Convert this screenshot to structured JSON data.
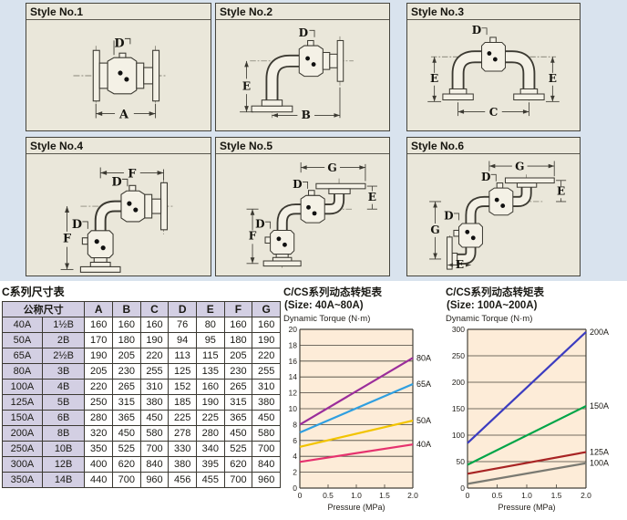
{
  "colors": {
    "page_top_background": "#d9e3ee",
    "panel_background": "#eae7da",
    "chart_plot_background": "#fdecd8",
    "table_header_background": "#d3cfe3"
  },
  "panels": [
    {
      "title": "Style No.1",
      "dims": {
        "top": "D",
        "bottom": "A"
      }
    },
    {
      "title": "Style No.2",
      "dims": {
        "top": "D",
        "left": "E",
        "bottom": "B"
      }
    },
    {
      "title": "Style No.3",
      "dims": {
        "top": "D",
        "left": "E",
        "right": "E",
        "bottom": "C"
      }
    },
    {
      "title": "Style No.4",
      "dims": {
        "top": "F",
        "upper": "D",
        "lower": "D",
        "left": "F"
      }
    },
    {
      "title": "Style No.5",
      "dims": {
        "top": "G",
        "upper": "D",
        "right": "E",
        "lower": "D",
        "left": "F"
      }
    },
    {
      "title": "Style No.6",
      "dims": {
        "top": "G",
        "upper": "D",
        "right": "E",
        "lower": "D",
        "left": "G",
        "bottom": "E"
      }
    }
  ],
  "table": {
    "title": "C系列尺寸表",
    "size_header": "公称尺寸",
    "columns": [
      "A",
      "B",
      "C",
      "D",
      "E",
      "F",
      "G"
    ],
    "rows": [
      {
        "size": [
          "40A",
          "1½B"
        ],
        "values": [
          "160",
          "160",
          "160",
          "76",
          "80",
          "160",
          "160"
        ]
      },
      {
        "size": [
          "50A",
          "2B"
        ],
        "values": [
          "170",
          "180",
          "190",
          "94",
          "95",
          "180",
          "190"
        ]
      },
      {
        "size": [
          "65A",
          "2½B"
        ],
        "values": [
          "190",
          "205",
          "220",
          "113",
          "115",
          "205",
          "220"
        ]
      },
      {
        "size": [
          "80A",
          "3B"
        ],
        "values": [
          "205",
          "230",
          "255",
          "125",
          "135",
          "230",
          "255"
        ]
      },
      {
        "size": [
          "100A",
          "4B"
        ],
        "values": [
          "220",
          "265",
          "310",
          "152",
          "160",
          "265",
          "310"
        ]
      },
      {
        "size": [
          "125A",
          "5B"
        ],
        "values": [
          "250",
          "315",
          "380",
          "185",
          "190",
          "315",
          "380"
        ]
      },
      {
        "size": [
          "150A",
          "6B"
        ],
        "values": [
          "280",
          "365",
          "450",
          "225",
          "225",
          "365",
          "450"
        ]
      },
      {
        "size": [
          "200A",
          "8B"
        ],
        "values": [
          "320",
          "450",
          "580",
          "278",
          "280",
          "450",
          "580"
        ]
      },
      {
        "size": [
          "250A",
          "10B"
        ],
        "values": [
          "350",
          "525",
          "700",
          "330",
          "340",
          "525",
          "700"
        ]
      },
      {
        "size": [
          "300A",
          "12B"
        ],
        "values": [
          "400",
          "620",
          "840",
          "380",
          "395",
          "620",
          "840"
        ]
      },
      {
        "size": [
          "350A",
          "14B"
        ],
        "values": [
          "440",
          "700",
          "960",
          "456",
          "455",
          "700",
          "960"
        ]
      }
    ]
  },
  "chart_data": [
    {
      "type": "line",
      "title": "C/CS系列动态转矩表",
      "subtitle": "(Size: 40A~80A)",
      "ylabel": "Dynamic Torque (N·m)",
      "xlabel": "Pressure (MPa)",
      "xlim": [
        0,
        2
      ],
      "ylim": [
        0,
        20
      ],
      "ytick_step": 2,
      "grid": true,
      "legend_position": "right-of-line-end",
      "xticks": [
        {
          "v": 0,
          "label": "0"
        },
        {
          "v": 0.5,
          "label": "0.5"
        },
        {
          "v": 1,
          "label": "1.0"
        },
        {
          "v": 1.5,
          "label": "1.5"
        },
        {
          "v": 2,
          "label": "2.0"
        }
      ],
      "series": [
        {
          "name": "80A",
          "color": "#9b2d9b",
          "points": [
            [
              0,
              8.0
            ],
            [
              2,
              16.4
            ]
          ]
        },
        {
          "name": "65A",
          "color": "#2f9fe0",
          "points": [
            [
              0,
              7.0
            ],
            [
              2,
              13.1
            ]
          ]
        },
        {
          "name": "50A",
          "color": "#f2c400",
          "points": [
            [
              0,
              5.2
            ],
            [
              2,
              8.5
            ]
          ]
        },
        {
          "name": "40A",
          "color": "#e5326e",
          "points": [
            [
              0,
              3.3
            ],
            [
              2,
              5.5
            ]
          ]
        }
      ]
    },
    {
      "type": "line",
      "title": "C/CS系列动态转矩表",
      "subtitle": "(Size: 100A~200A)",
      "ylabel": "Dynamic Torque (N·m)",
      "xlabel": "Pressure (MPa)",
      "xlim": [
        0,
        2
      ],
      "ylim": [
        0,
        300
      ],
      "ytick_step": 50,
      "grid": true,
      "legend_position": "right-of-line-end",
      "xticks": [
        {
          "v": 0,
          "label": "0"
        },
        {
          "v": 0.5,
          "label": "0.5"
        },
        {
          "v": 1,
          "label": "1.0"
        },
        {
          "v": 1.5,
          "label": "1.5"
        },
        {
          "v": 2,
          "label": "2.0"
        }
      ],
      "series": [
        {
          "name": "200A",
          "color": "#3c3cc0",
          "points": [
            [
              0,
              85
            ],
            [
              2,
              295
            ]
          ]
        },
        {
          "name": "150A",
          "color": "#00a548",
          "points": [
            [
              0,
              44
            ],
            [
              2,
              155
            ]
          ]
        },
        {
          "name": "125A",
          "color": "#a82424",
          "points": [
            [
              0,
              27
            ],
            [
              2,
              68
            ]
          ]
        },
        {
          "name": "100A",
          "color": "#7a7a72",
          "points": [
            [
              0,
              8
            ],
            [
              2,
              47
            ]
          ]
        }
      ]
    }
  ]
}
